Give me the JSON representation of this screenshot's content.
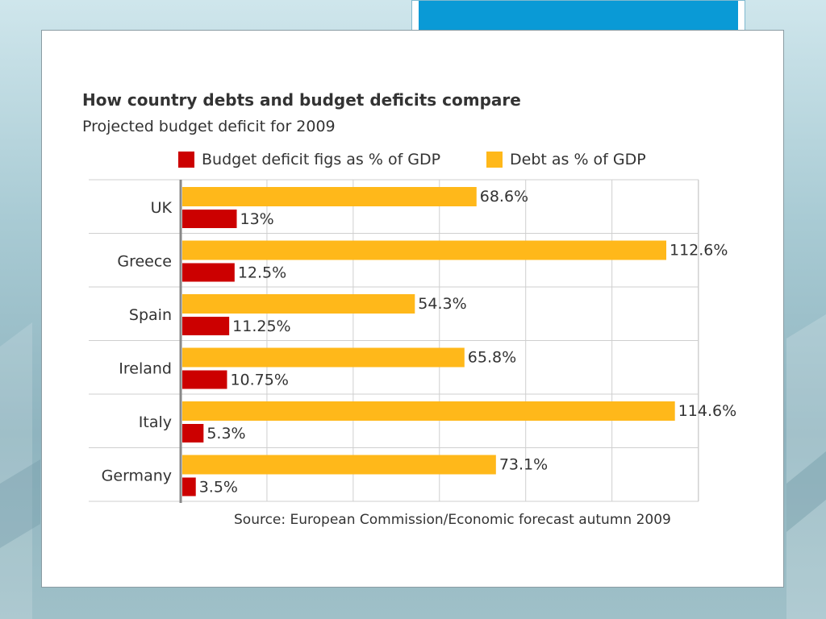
{
  "chart_data": {
    "type": "bar",
    "orientation": "horizontal",
    "title": "How country debts and budget deficits compare",
    "subtitle": "Projected budget deficit for 2009",
    "categories": [
      "UK",
      "Greece",
      "Spain",
      "Ireland",
      "Italy",
      "Germany"
    ],
    "series": [
      {
        "name": "Budget deficit figs as % of GDP",
        "color": "#cc0000",
        "values": [
          13,
          12.5,
          11.25,
          10.75,
          5.3,
          3.5
        ],
        "labels": [
          "13%",
          "12.5%",
          "11.25%",
          "10.75%",
          "5.3%",
          "3.5%"
        ]
      },
      {
        "name": "Debt as % of GDP",
        "color": "#ffb81a",
        "values": [
          68.6,
          112.6,
          54.3,
          65.8,
          114.6,
          73.1
        ],
        "labels": [
          "68.6%",
          "112.6%",
          "54.3%",
          "65.8%",
          "114.6%",
          "73.1%"
        ]
      }
    ],
    "xlim": [
      0,
      120
    ],
    "grid": true,
    "legend_position": "top",
    "source": "Source: European Commission/Economic forecast autumn 2009"
  },
  "colors": {
    "accent": "#0a9ad6",
    "deficit": "#cc0000",
    "debt": "#ffb81a"
  }
}
